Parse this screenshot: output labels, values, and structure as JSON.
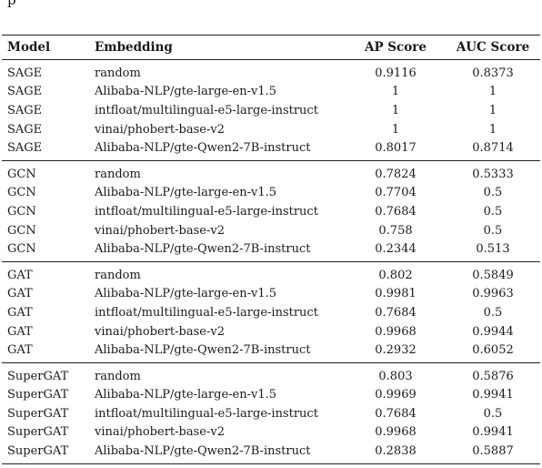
{
  "top_fragment": "p",
  "table": {
    "headers": {
      "model": "Model",
      "embedding": "Embedding",
      "ap": "AP Score",
      "auc": "AUC Score"
    },
    "groups": [
      {
        "rows": [
          {
            "model": "SAGE",
            "embedding": "random",
            "ap": "0.9116",
            "auc": "0.8373"
          },
          {
            "model": "SAGE",
            "embedding": "Alibaba-NLP/gte-large-en-v1.5",
            "ap": "1",
            "auc": "1"
          },
          {
            "model": "SAGE",
            "embedding": "intfloat/multilingual-e5-large-instruct",
            "ap": "1",
            "auc": "1"
          },
          {
            "model": "SAGE",
            "embedding": "vinai/phobert-base-v2",
            "ap": "1",
            "auc": "1"
          },
          {
            "model": "SAGE",
            "embedding": "Alibaba-NLP/gte-Qwen2-7B-instruct",
            "ap": "0.8017",
            "auc": "0.8714"
          }
        ]
      },
      {
        "rows": [
          {
            "model": "GCN",
            "embedding": "random",
            "ap": "0.7824",
            "auc": "0.5333"
          },
          {
            "model": "GCN",
            "embedding": "Alibaba-NLP/gte-large-en-v1.5",
            "ap": "0.7704",
            "auc": "0.5"
          },
          {
            "model": "GCN",
            "embedding": "intfloat/multilingual-e5-large-instruct",
            "ap": "0.7684",
            "auc": "0.5"
          },
          {
            "model": "GCN",
            "embedding": "vinai/phobert-base-v2",
            "ap": "0.758",
            "auc": "0.5"
          },
          {
            "model": "GCN",
            "embedding": "Alibaba-NLP/gte-Qwen2-7B-instruct",
            "ap": "0.2344",
            "auc": "0.513"
          }
        ]
      },
      {
        "rows": [
          {
            "model": "GAT",
            "embedding": "random",
            "ap": "0.802",
            "auc": "0.5849"
          },
          {
            "model": "GAT",
            "embedding": "Alibaba-NLP/gte-large-en-v1.5",
            "ap": "0.9981",
            "auc": "0.9963"
          },
          {
            "model": "GAT",
            "embedding": "intfloat/multilingual-e5-large-instruct",
            "ap": "0.7684",
            "auc": "0.5"
          },
          {
            "model": "GAT",
            "embedding": "vinai/phobert-base-v2",
            "ap": "0.9968",
            "auc": "0.9944"
          },
          {
            "model": "GAT",
            "embedding": "Alibaba-NLP/gte-Qwen2-7B-instruct",
            "ap": "0.2932",
            "auc": "0.6052"
          }
        ]
      },
      {
        "rows": [
          {
            "model": "SuperGAT",
            "embedding": "random",
            "ap": "0.803",
            "auc": "0.5876"
          },
          {
            "model": "SuperGAT",
            "embedding": "Alibaba-NLP/gte-large-en-v1.5",
            "ap": "0.9969",
            "auc": "0.9941"
          },
          {
            "model": "SuperGAT",
            "embedding": "intfloat/multilingual-e5-large-instruct",
            "ap": "0.7684",
            "auc": "0.5"
          },
          {
            "model": "SuperGAT",
            "embedding": "vinai/phobert-base-v2",
            "ap": "0.9968",
            "auc": "0.9941"
          },
          {
            "model": "SuperGAT",
            "embedding": "Alibaba-NLP/gte-Qwen2-7B-instruct",
            "ap": "0.2838",
            "auc": "0.5887"
          }
        ]
      }
    ]
  }
}
